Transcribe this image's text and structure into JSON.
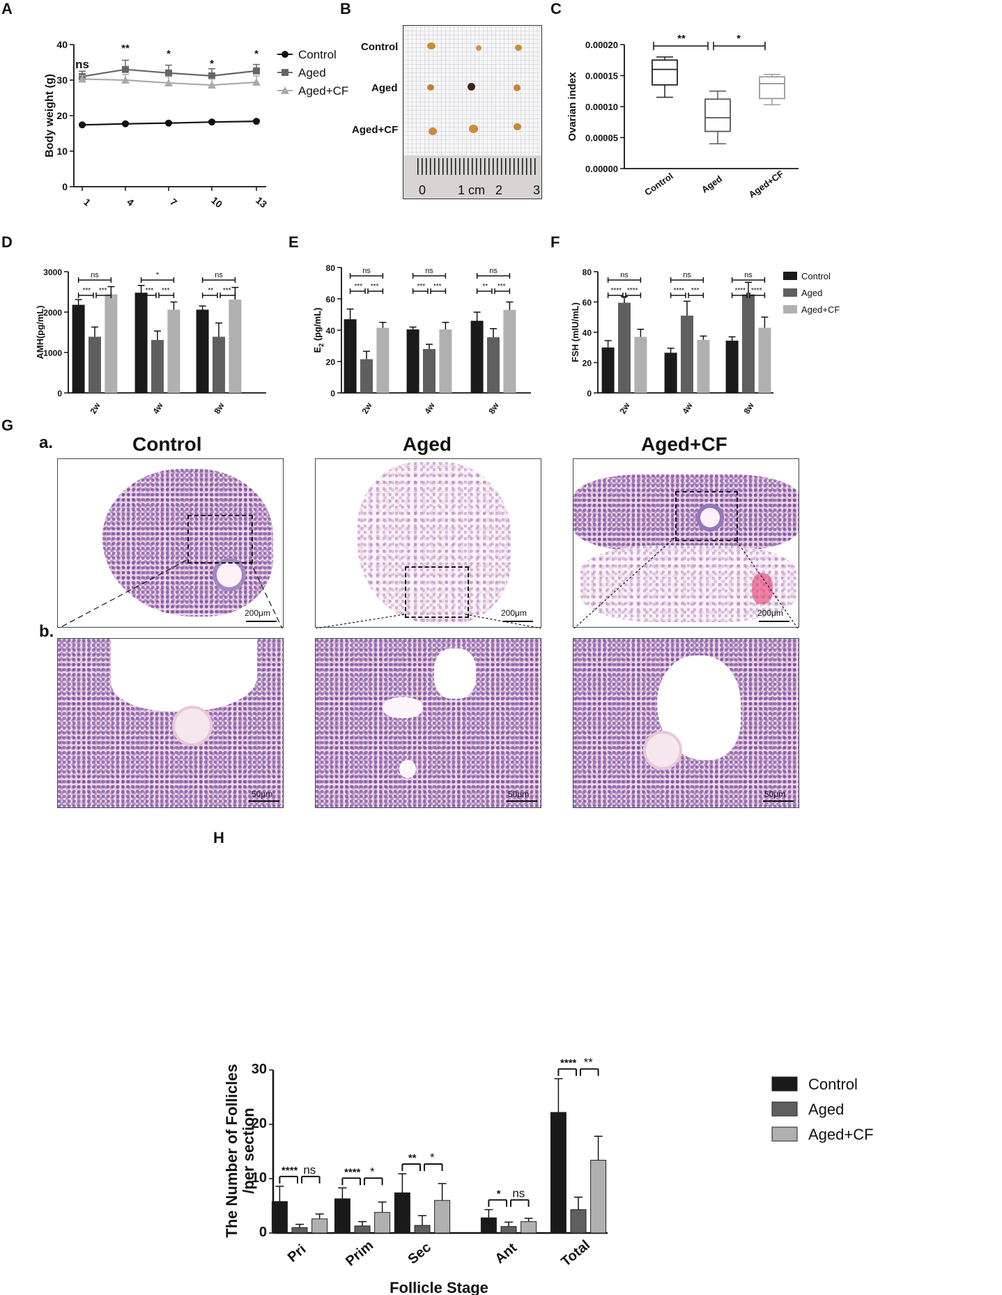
{
  "panel_labels": {
    "A": "A",
    "B": "B",
    "C": "C",
    "D": "D",
    "E": "E",
    "F": "F",
    "G": "G",
    "H": "H",
    "Ga": "a.",
    "Gb": "b."
  },
  "colors": {
    "control": "#1a1a1a",
    "aged": "#5f5f5f",
    "agedcf": "#b0b0b0"
  },
  "groups": [
    "Control",
    "Aged",
    "Aged+CF"
  ],
  "panelA": {
    "ylabel": "Body weight (g)",
    "yticks": [
      "0",
      "10",
      "20",
      "30",
      "40"
    ],
    "xticks": [
      "1",
      "4",
      "7",
      "10",
      "13"
    ],
    "sig": [
      "ns",
      "**",
      "*",
      "*",
      "*"
    ],
    "legend": [
      "Control",
      "Aged",
      "Aged+CF"
    ]
  },
  "panelB": {
    "rows": [
      "Control",
      "Aged",
      "Aged+CF"
    ],
    "ruler": [
      "0",
      "1 cm",
      "2",
      "3"
    ]
  },
  "panelC": {
    "ylabel": "Ovarian index",
    "yticks": [
      "0.00000",
      "0.00005",
      "0.00010",
      "0.00015",
      "0.00020"
    ],
    "xticks": [
      "Control",
      "Aged",
      "Aged+CF"
    ],
    "sig": [
      "**",
      "*"
    ]
  },
  "panelD": {
    "ylabel": "AMH(pg/mL)",
    "yticks": [
      "0",
      "1000",
      "2000",
      "3000"
    ],
    "xticks": [
      "2w",
      "4w",
      "8w"
    ],
    "sig": [
      [
        "***",
        "***",
        "ns"
      ],
      [
        "***",
        "***",
        "*"
      ],
      [
        "**",
        "***",
        "ns"
      ]
    ]
  },
  "panelE": {
    "ylabel": "E2 (pg/mL)",
    "ylabel_main": "E",
    "ylabel_sub": "2",
    "ylabel_rest": " (pg/mL)",
    "yticks": [
      "0",
      "20",
      "40",
      "60",
      "80"
    ],
    "xticks": [
      "2w",
      "4w",
      "8w"
    ],
    "sig": [
      [
        "***",
        "***",
        "ns"
      ],
      [
        "***",
        "***",
        "ns"
      ],
      [
        "**",
        "***",
        "ns"
      ]
    ]
  },
  "panelF": {
    "ylabel": "FSH (mIU/mL)",
    "yticks": [
      "0",
      "20",
      "40",
      "60",
      "80"
    ],
    "xticks": [
      "2w",
      "4w",
      "8w"
    ],
    "sig": [
      [
        "****",
        "****",
        "ns"
      ],
      [
        "****",
        "***",
        "ns"
      ],
      [
        "****",
        "****",
        "ns"
      ]
    ],
    "legend": [
      "Control",
      "Aged",
      "Aged+CF"
    ]
  },
  "panelG": {
    "titles": [
      "Control",
      "Aged",
      "Aged+CF"
    ],
    "scale_top": "200μm",
    "scale_bottom": "50μm"
  },
  "panelH": {
    "ylabel_line1": "The Number of Follicles",
    "ylabel_line2": "/per section",
    "xlabel": "Follicle Stage",
    "yticks": [
      "0",
      "10",
      "20",
      "30"
    ],
    "xticks": [
      "Pri",
      "Prim",
      "Sec",
      "Ant",
      "Total"
    ],
    "sig": [
      [
        "****",
        "ns"
      ],
      [
        "****",
        "*"
      ],
      [
        "**",
        "*"
      ],
      [
        "*",
        "ns"
      ],
      [
        "****",
        "**"
      ]
    ],
    "legend": [
      "Control",
      "Aged",
      "Aged+CF"
    ]
  },
  "chart_data": [
    {
      "id": "A",
      "type": "line",
      "xlabel": "",
      "ylabel": "Body weight (g)",
      "ylim": [
        0,
        40
      ],
      "x": [
        1,
        4,
        7,
        10,
        13
      ],
      "series": [
        {
          "name": "Control",
          "values": [
            17.4,
            17.7,
            17.9,
            18.2,
            18.4
          ],
          "err": [
            0.3,
            0.3,
            0.3,
            0.3,
            0.3
          ]
        },
        {
          "name": "Aged",
          "values": [
            31,
            33,
            32,
            31.2,
            32.6
          ],
          "err": [
            1.5,
            2.6,
            2.2,
            2,
            1.8
          ]
        },
        {
          "name": "Aged+CF",
          "values": [
            30.3,
            30,
            29.2,
            28.6,
            29.4
          ],
          "err": [
            1,
            1.6,
            1.8,
            1.7,
            1.8
          ]
        }
      ]
    },
    {
      "id": "C",
      "type": "box",
      "ylabel": "Ovarian index",
      "ylim": [
        0,
        0.0002
      ],
      "categories": [
        "Control",
        "Aged",
        "Aged+CF"
      ],
      "boxes": [
        {
          "min": 0.000115,
          "q1": 0.000135,
          "median": 0.00016,
          "q3": 0.000175,
          "max": 0.00018
        },
        {
          "min": 4e-05,
          "q1": 6e-05,
          "median": 8.2e-05,
          "q3": 0.000112,
          "max": 0.000125
        },
        {
          "min": 0.000103,
          "q1": 0.000113,
          "median": 0.000137,
          "q3": 0.000148,
          "max": 0.000152
        }
      ]
    },
    {
      "id": "D",
      "type": "bar",
      "ylabel": "AMH(pg/mL)",
      "ylim": [
        0,
        3000
      ],
      "categories": [
        "2w",
        "4w",
        "8w"
      ],
      "series": [
        {
          "name": "Control",
          "values": [
            2180,
            2480,
            2060
          ],
          "err": [
            130,
            180,
            90
          ]
        },
        {
          "name": "Aged",
          "values": [
            1390,
            1310,
            1390
          ],
          "err": [
            240,
            220,
            340
          ]
        },
        {
          "name": "Aged+CF",
          "values": [
            2440,
            2060,
            2310
          ],
          "err": [
            190,
            190,
            300
          ]
        }
      ]
    },
    {
      "id": "E",
      "type": "bar",
      "ylabel": "E2 (pg/mL)",
      "ylim": [
        0,
        80
      ],
      "categories": [
        "2w",
        "4w",
        "8w"
      ],
      "series": [
        {
          "name": "Control",
          "values": [
            47,
            40.5,
            46
          ],
          "err": [
            6.5,
            1.5,
            5.5
          ]
        },
        {
          "name": "Aged",
          "values": [
            21.5,
            28,
            35.5
          ],
          "err": [
            5,
            3,
            5.5
          ]
        },
        {
          "name": "Aged+CF",
          "values": [
            41.5,
            40.5,
            53
          ],
          "err": [
            3.5,
            4.5,
            5
          ]
        }
      ]
    },
    {
      "id": "F",
      "type": "bar",
      "ylabel": "FSH (mIU/mL)",
      "ylim": [
        0,
        80
      ],
      "categories": [
        "2w",
        "4w",
        "8w"
      ],
      "series": [
        {
          "name": "Control",
          "values": [
            30,
            26.5,
            34.5
          ],
          "err": [
            4.5,
            3,
            2.5
          ]
        },
        {
          "name": "Aged",
          "values": [
            59.5,
            51,
            65
          ],
          "err": [
            4,
            9.5,
            8
          ]
        },
        {
          "name": "Aged+CF",
          "values": [
            37,
            35,
            43
          ],
          "err": [
            5,
            2.5,
            7
          ]
        }
      ]
    },
    {
      "id": "H",
      "type": "bar",
      "xlabel": "Follicle Stage",
      "ylabel": "The Number of Follicles /per section",
      "ylim": [
        0,
        30
      ],
      "categories": [
        "Pri",
        "Prim",
        "Sec",
        "Ant",
        "Total"
      ],
      "series": [
        {
          "name": "Control",
          "values": [
            5.8,
            6.3,
            7.4,
            2.8,
            22.2
          ],
          "err": [
            2.8,
            2,
            3.5,
            1.5,
            6.2
          ]
        },
        {
          "name": "Aged",
          "values": [
            1,
            1.3,
            1.4,
            1.2,
            4.3
          ],
          "err": [
            0.6,
            0.8,
            1.8,
            0.8,
            2.3
          ]
        },
        {
          "name": "Aged+CF",
          "values": [
            2.6,
            3.8,
            6,
            2.1,
            13.4
          ],
          "err": [
            0.9,
            1.9,
            3.1,
            0.6,
            4.4
          ]
        }
      ]
    }
  ]
}
